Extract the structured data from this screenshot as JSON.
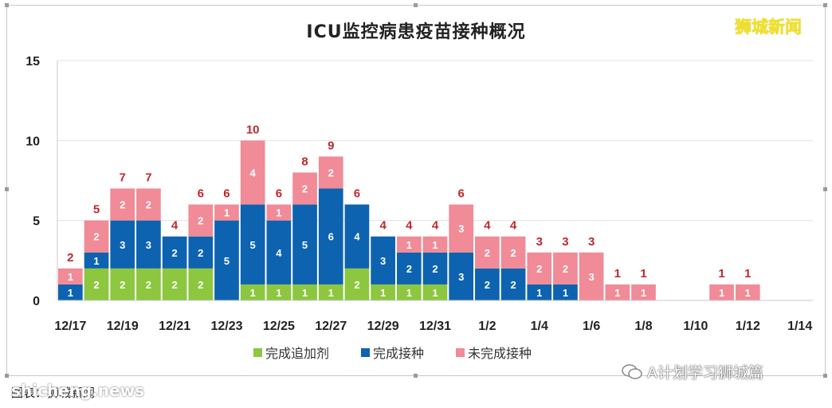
{
  "watermark": "狮城新闻",
  "footer": {
    "wechat_label": "A计划学习狮城篇",
    "source": "图表：狮城新闻",
    "site": "shicheng.news"
  },
  "colors": {
    "booster": "#8dc63f",
    "vaccinated": "#0d63b0",
    "unvaccinated": "#f08b97",
    "total_label": "#c0272d"
  },
  "chart_data": {
    "type": "bar",
    "stacked": true,
    "title": "ICU监控病患疫苗接种概况",
    "xlabel": "",
    "ylabel": "",
    "ylim": [
      0,
      15
    ],
    "yticks": [
      "0",
      "5",
      "10",
      "15"
    ],
    "grid": true,
    "legend_position": "bottom",
    "categories": [
      "12/17",
      "12/18",
      "12/19",
      "12/20",
      "12/21",
      "12/22",
      "12/23",
      "12/24",
      "12/25",
      "12/26",
      "12/27",
      "12/28",
      "12/29",
      "12/30",
      "12/31",
      "1/1",
      "1/2",
      "1/3",
      "1/4",
      "1/5",
      "1/6",
      "1/7",
      "1/8",
      "1/9",
      "1/10",
      "1/11",
      "1/12",
      "1/13",
      "1/14"
    ],
    "xtick_labels": [
      "12/17",
      "12/19",
      "12/21",
      "12/23",
      "12/25",
      "12/27",
      "12/29",
      "12/31",
      "1/2",
      "1/4",
      "1/6",
      "1/8",
      "1/10",
      "1/12",
      "1/14"
    ],
    "series": [
      {
        "name": "完成追加剂",
        "values": [
          0,
          2,
          2,
          2,
          2,
          2,
          0,
          1,
          1,
          1,
          1,
          2,
          1,
          1,
          1,
          0,
          0,
          0,
          0,
          0,
          0,
          0,
          0,
          0,
          0,
          0,
          0,
          0,
          0
        ]
      },
      {
        "name": "完成接种",
        "values": [
          1,
          1,
          3,
          3,
          2,
          2,
          5,
          5,
          4,
          5,
          6,
          4,
          3,
          2,
          2,
          3,
          2,
          2,
          1,
          1,
          0,
          0,
          0,
          0,
          0,
          0,
          0,
          0,
          0
        ]
      },
      {
        "name": "未完成接种",
        "values": [
          1,
          2,
          2,
          2,
          0,
          2,
          1,
          4,
          1,
          2,
          2,
          0,
          0,
          1,
          1,
          3,
          2,
          2,
          2,
          2,
          3,
          1,
          1,
          0,
          0,
          1,
          1,
          0,
          0
        ]
      }
    ],
    "totals": [
      2,
      5,
      7,
      7,
      4,
      6,
      6,
      10,
      6,
      8,
      9,
      6,
      4,
      4,
      4,
      6,
      4,
      4,
      3,
      3,
      3,
      1,
      1,
      0,
      0,
      1,
      1,
      0,
      0
    ]
  }
}
